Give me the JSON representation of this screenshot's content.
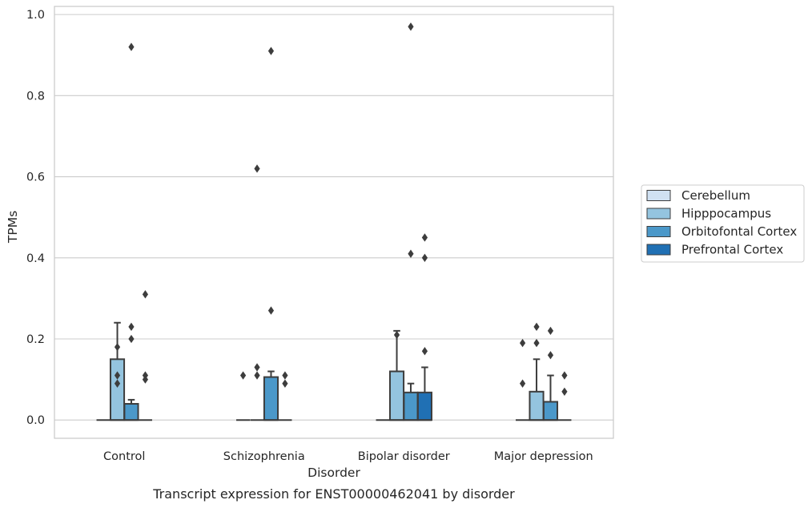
{
  "chart_data": {
    "type": "box",
    "xlabel": "Disorder",
    "ylabel": "TPMs",
    "caption": "Transcript expression for ENST00000462041 by disorder",
    "ylim": [
      -0.045,
      1.02
    ],
    "yticks": [
      "0.0",
      "0.2",
      "0.4",
      "0.6",
      "0.8",
      "1.0"
    ],
    "grid": "horizontal",
    "legend_position": "right",
    "categories": [
      "Control",
      "Schizophrenia",
      "Bipolar disorder",
      "Major depression"
    ],
    "series": [
      {
        "name": "Cerebellum",
        "color": "#d0e1f2",
        "boxes": [
          {
            "category": "Control",
            "q1": 0,
            "median": 0,
            "q3": 0,
            "whisker_low": 0,
            "whisker_high": 0,
            "outliers": []
          },
          {
            "category": "Schizophrenia",
            "q1": 0,
            "median": 0,
            "q3": 0,
            "whisker_low": 0,
            "whisker_high": 0,
            "outliers": [
              0.11
            ]
          },
          {
            "category": "Bipolar disorder",
            "q1": 0,
            "median": 0,
            "q3": 0,
            "whisker_low": 0,
            "whisker_high": 0,
            "outliers": []
          },
          {
            "category": "Major depression",
            "q1": 0,
            "median": 0,
            "q3": 0,
            "whisker_low": 0,
            "whisker_high": 0,
            "outliers": [
              0.19,
              0.09
            ]
          }
        ]
      },
      {
        "name": "Hipppocampus",
        "color": "#94c4df",
        "boxes": [
          {
            "category": "Control",
            "q1": 0,
            "median": 0,
            "q3": 0.15,
            "whisker_low": 0,
            "whisker_high": 0.24,
            "outliers": [
              0.18,
              0.11,
              0.09
            ]
          },
          {
            "category": "Schizophrenia",
            "q1": 0,
            "median": 0,
            "q3": 0,
            "whisker_low": 0,
            "whisker_high": 0,
            "outliers": [
              0.62,
              0.13,
              0.11
            ]
          },
          {
            "category": "Bipolar disorder",
            "q1": 0,
            "median": 0,
            "q3": 0.12,
            "whisker_low": 0,
            "whisker_high": 0.22,
            "outliers": [
              0.21
            ]
          },
          {
            "category": "Major depression",
            "q1": 0,
            "median": 0,
            "q3": 0.07,
            "whisker_low": 0,
            "whisker_high": 0.15,
            "outliers": [
              0.23,
              0.19
            ]
          }
        ]
      },
      {
        "name": "Orbitofontal Cortex",
        "color": "#4b98c9",
        "boxes": [
          {
            "category": "Control",
            "q1": 0,
            "median": 0,
            "q3": 0.04,
            "whisker_low": 0,
            "whisker_high": 0.05,
            "outliers": [
              0.92,
              0.23,
              0.2
            ]
          },
          {
            "category": "Schizophrenia",
            "q1": 0,
            "median": 0,
            "q3": 0.106,
            "whisker_low": 0,
            "whisker_high": 0.12,
            "outliers": [
              0.91,
              0.27
            ]
          },
          {
            "category": "Bipolar disorder",
            "q1": 0,
            "median": 0,
            "q3": 0.068,
            "whisker_low": 0,
            "whisker_high": 0.09,
            "outliers": [
              0.97,
              0.41
            ]
          },
          {
            "category": "Major depression",
            "q1": 0,
            "median": 0,
            "q3": 0.045,
            "whisker_low": 0,
            "whisker_high": 0.11,
            "outliers": [
              0.22,
              0.16
            ]
          }
        ]
      },
      {
        "name": "Prefrontal Cortex",
        "color": "#2070b4",
        "boxes": [
          {
            "category": "Control",
            "q1": 0,
            "median": 0,
            "q3": 0,
            "whisker_low": 0,
            "whisker_high": 0,
            "outliers": [
              0.31,
              0.11,
              0.1
            ]
          },
          {
            "category": "Schizophrenia",
            "q1": 0,
            "median": 0,
            "q3": 0,
            "whisker_low": 0,
            "whisker_high": 0,
            "outliers": [
              0.11,
              0.09
            ]
          },
          {
            "category": "Bipolar disorder",
            "q1": 0,
            "median": 0,
            "q3": 0.068,
            "whisker_low": 0,
            "whisker_high": 0.13,
            "outliers": [
              0.45,
              0.4,
              0.17
            ]
          },
          {
            "category": "Major depression",
            "q1": 0,
            "median": 0,
            "q3": 0,
            "whisker_low": 0,
            "whisker_high": 0,
            "outliers": [
              0.11,
              0.07
            ]
          }
        ]
      }
    ]
  }
}
